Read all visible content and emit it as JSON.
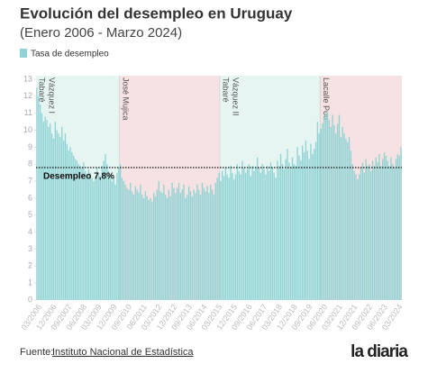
{
  "chart_data": {
    "type": "bar",
    "title": "Evolución del desempleo en Uruguay",
    "subtitle": "(Enero 2006 - Marzo 2024)",
    "legend": "Tasa de desempleo",
    "color": "#8fd3d4",
    "source_prefix": "Fuente:",
    "source_link": "Instituto Nacional de Estadística",
    "logo": "la diaria",
    "periods": [
      {
        "lines": [
          "Tabaré",
          "Vázquez I"
        ],
        "color": "#e6f5f2"
      },
      {
        "lines": [
          "José Mujica"
        ],
        "color": "#f6e2e2"
      },
      {
        "lines": [
          "Tabaré",
          "Vázquez II"
        ],
        "color": "#e6f5f2"
      },
      {
        "lines": [
          "Lacalle Pou"
        ],
        "color": "#f6e2e2"
      }
    ],
    "reference": {
      "value": 7.8,
      "label": "Desempleo 7,8%"
    },
    "ylim": [
      0,
      13
    ],
    "yticks": [
      0,
      1,
      2,
      3,
      4,
      5,
      6,
      7,
      8,
      9,
      10,
      11,
      12,
      13
    ],
    "categories": [
      null,
      null,
      "03/2006",
      null,
      null,
      null,
      null,
      null,
      null,
      null,
      null,
      "12/2006",
      null,
      null,
      null,
      null,
      null,
      null,
      null,
      null,
      "09/2007",
      null,
      null,
      null,
      null,
      null,
      null,
      null,
      null,
      "06/2008",
      null,
      null,
      null,
      null,
      null,
      null,
      null,
      null,
      "03/2009",
      null,
      null,
      null,
      null,
      null,
      null,
      null,
      null,
      "12/2009",
      null,
      null,
      null,
      null,
      null,
      null,
      null,
      null,
      "09/2010",
      null,
      null,
      null,
      null,
      null,
      null,
      null,
      null,
      "06/2011",
      null,
      null,
      null,
      null,
      null,
      null,
      null,
      null,
      "03/2012",
      null,
      null,
      null,
      null,
      null,
      null,
      null,
      null,
      "12/2012",
      null,
      null,
      null,
      null,
      null,
      null,
      null,
      null,
      "09/2013",
      null,
      null,
      null,
      null,
      null,
      null,
      null,
      null,
      "06/2014",
      null,
      null,
      null,
      null,
      null,
      null,
      null,
      null,
      "03/2015",
      null,
      null,
      null,
      null,
      null,
      null,
      null,
      null,
      "12/2015",
      null,
      null,
      null,
      null,
      null,
      null,
      null,
      null,
      "09/2016",
      null,
      null,
      null,
      null,
      null,
      null,
      null,
      null,
      "06/2017",
      null,
      null,
      null,
      null,
      null,
      null,
      null,
      null,
      "03/2018",
      null,
      null,
      null,
      null,
      null,
      null,
      null,
      null,
      "12/2018",
      null,
      null,
      null,
      null,
      null,
      null,
      null,
      null,
      "09/2019",
      null,
      null,
      null,
      null,
      null,
      null,
      null,
      null,
      "06/2020",
      null,
      null,
      null,
      null,
      null,
      null,
      null,
      null,
      "03/2021",
      null,
      null,
      null,
      null,
      null,
      null,
      null,
      null,
      "12/2021",
      null,
      null,
      null,
      null,
      null,
      null,
      null,
      null,
      "09/2022",
      null,
      null,
      null,
      null,
      null,
      null,
      null,
      null,
      "06/2023",
      null,
      null,
      null,
      null,
      null,
      null,
      null,
      null,
      "03/2024"
    ],
    "values": [
      12.5,
      12.0,
      11.5,
      11.0,
      10.5,
      10.8,
      10.6,
      10.2,
      10.4,
      9.8,
      9.5,
      10.5,
      10.0,
      9.8,
      9.6,
      10.2,
      9.4,
      9.8,
      9.2,
      8.8,
      9.0,
      8.7,
      8.5,
      8.3,
      8.2,
      8.0,
      7.9,
      7.8,
      8.1,
      7.6,
      7.4,
      7.7,
      7.5,
      7.2,
      7.0,
      7.1,
      7.8,
      7.5,
      7.3,
      7.9,
      8.2,
      8.6,
      8.0,
      7.6,
      7.4,
      7.0,
      7.2,
      6.8,
      7.5,
      7.8,
      8.0,
      7.2,
      7.0,
      6.8,
      6.6,
      6.5,
      6.9,
      6.4,
      6.2,
      6.7,
      6.5,
      6.3,
      6.8,
      6.2,
      6.0,
      6.4,
      6.1,
      5.9,
      6.0,
      5.8,
      6.3,
      6.1,
      6.5,
      7.0,
      6.4,
      6.3,
      6.8,
      6.2,
      6.0,
      6.5,
      6.1,
      6.9,
      6.6,
      6.3,
      6.6,
      6.9,
      6.3,
      6.5,
      6.8,
      6.0,
      6.2,
      6.7,
      6.4,
      6.1,
      6.5,
      6.3,
      6.8,
      6.5,
      6.2,
      6.9,
      6.6,
      6.4,
      6.7,
      6.3,
      6.8,
      6.5,
      6.2,
      6.9,
      7.2,
      7.5,
      7.0,
      7.6,
      7.3,
      7.8,
      7.4,
      7.2,
      7.9,
      7.5,
      7.1,
      7.4,
      8.0,
      7.6,
      7.4,
      8.2,
      7.8,
      7.5,
      7.7,
      8.0,
      7.3,
      7.9,
      7.6,
      7.8,
      8.4,
      7.8,
      7.5,
      8.0,
      7.7,
      7.4,
      7.9,
      7.6,
      8.1,
      7.8,
      7.5,
      7.2,
      8.2,
      7.9,
      8.6,
      8.0,
      7.7,
      8.3,
      8.9,
      8.1,
      7.8,
      8.4,
      8.0,
      7.9,
      9.0,
      8.5,
      8.2,
      9.1,
      8.7,
      9.4,
      8.8,
      8.3,
      9.2,
      8.6,
      8.9,
      9.3,
      10.5,
      9.8,
      10.1,
      10.4,
      10.8,
      11.0,
      11.1,
      10.6,
      10.2,
      10.9,
      10.3,
      9.8,
      10.4,
      10.9,
      9.6,
      10.2,
      9.8,
      9.5,
      9.3,
      9.6,
      8.8,
      8.0,
      7.6,
      7.4,
      7.1,
      7.4,
      7.8,
      8.1,
      7.5,
      8.3,
      7.9,
      8.0,
      7.6,
      8.2,
      7.9,
      8.4,
      8.1,
      8.6,
      7.9,
      8.3,
      8.7,
      8.5,
      8.2,
      7.9,
      8.4,
      8.0,
      7.8,
      8.3,
      8.6,
      8.5,
      9.0
    ]
  }
}
